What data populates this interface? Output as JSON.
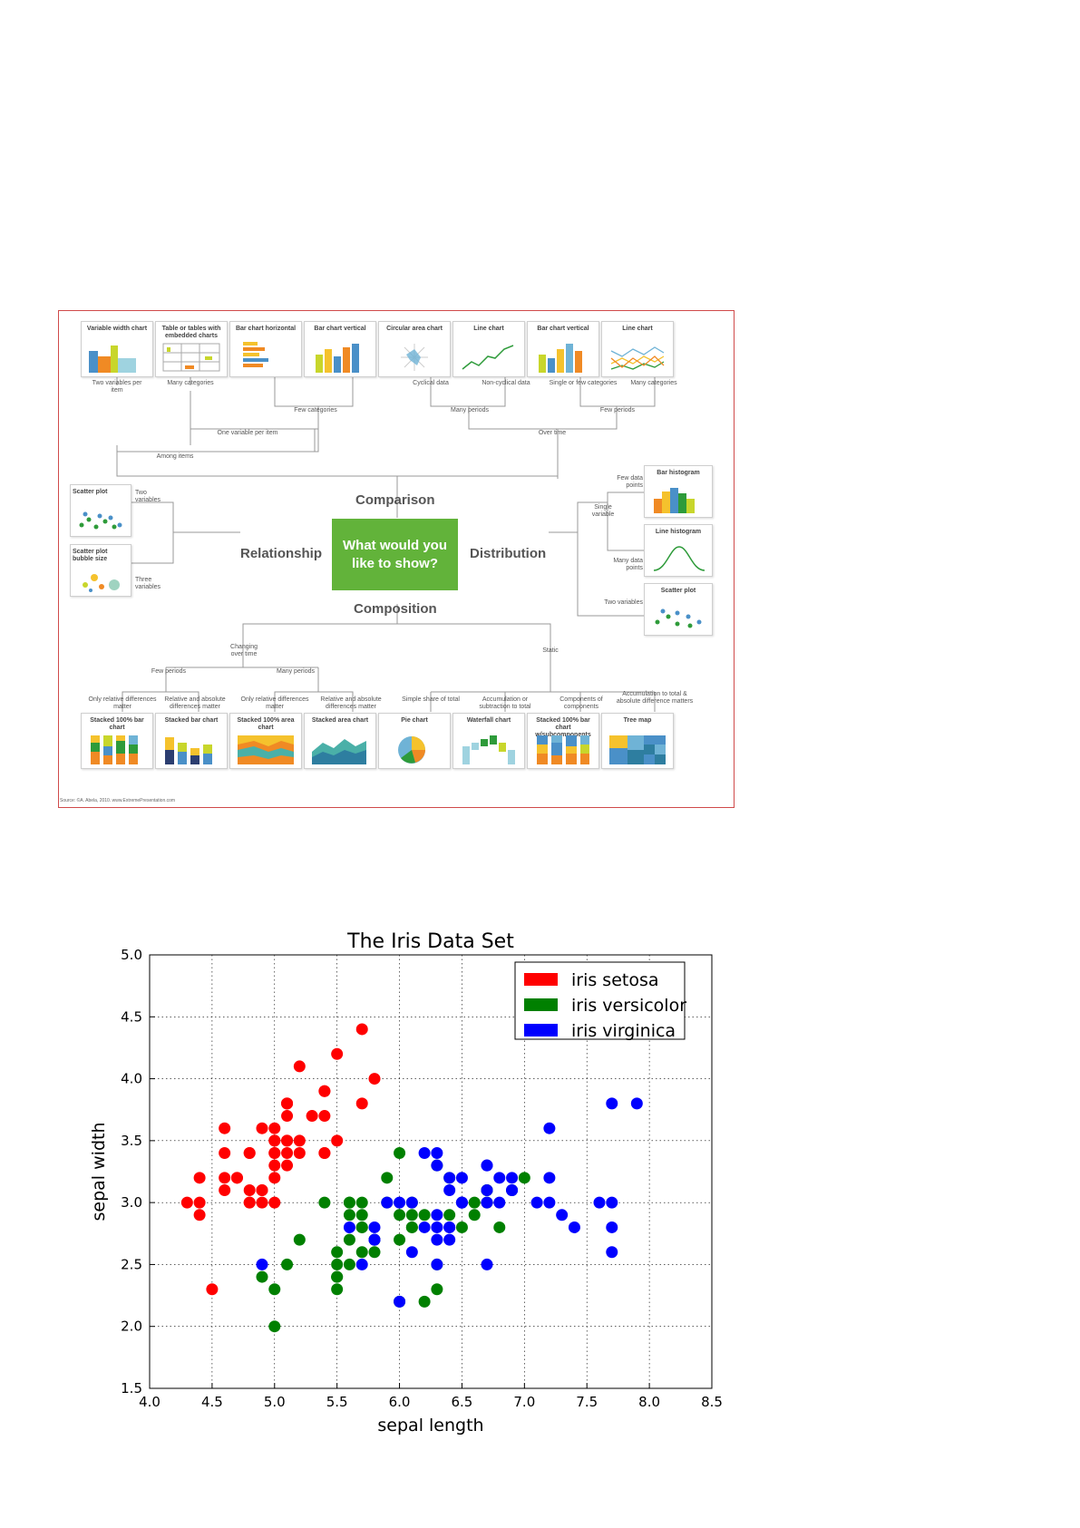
{
  "chooser": {
    "center_text": [
      "What would you",
      "like to show?"
    ],
    "categories": {
      "comparison": "Comparison",
      "relationship": "Relationship",
      "distribution": "Distribution",
      "composition": "Composition"
    },
    "top_cards": [
      {
        "title": "Variable width chart",
        "icon": "variable-width-chart-icon"
      },
      {
        "title": "Table or tables with embedded charts",
        "icon": "table-chart-icon"
      },
      {
        "title": "Bar chart horizontal",
        "icon": "horizontal-bar-chart-icon"
      },
      {
        "title": "Bar chart vertical",
        "icon": "vertical-bar-chart-icon"
      },
      {
        "title": "Circular area chart",
        "icon": "circular-area-chart-icon"
      },
      {
        "title": "Line chart",
        "icon": "line-chart-icon"
      },
      {
        "title": "Bar chart vertical",
        "icon": "vertical-bar-chart-icon"
      },
      {
        "title": "Line chart",
        "icon": "multi-line-chart-icon"
      }
    ],
    "top_labels": {
      "two_vars_per_item": "Two variables per item",
      "many_categories_1": "Many categories",
      "cyclical": "Cyclical data",
      "non_cyclical": "Non-cyclical data",
      "single_few_categories": "Single or few categories",
      "many_categories_2": "Many categories",
      "few_categories": "Few categories",
      "many_periods": "Many periods",
      "few_periods": "Few periods",
      "one_var_per_item": "One variable per item",
      "over_time": "Over time",
      "among_items": "Among items"
    },
    "left_cards": [
      {
        "title": "Scatter plot",
        "icon": "scatter-plot-icon"
      },
      {
        "title": "Scatter plot bubble size",
        "icon": "bubble-chart-icon"
      }
    ],
    "left_labels": {
      "two_vars": "Two variables",
      "three_vars": "Three variables"
    },
    "right_cards": [
      {
        "title": "Bar histogram",
        "icon": "bar-histogram-icon"
      },
      {
        "title": "Line histogram",
        "icon": "line-histogram-icon"
      },
      {
        "title": "Scatter plot",
        "icon": "scatter-plot-icon"
      }
    ],
    "right_labels": {
      "few_points": "Few data points",
      "single_var": "Single variable",
      "many_points": "Many data points",
      "two_vars": "Two variables"
    },
    "bottom_cards": [
      {
        "title": "Stacked 100% bar chart",
        "icon": "stacked-100-bar-chart-icon"
      },
      {
        "title": "Stacked bar chart",
        "icon": "stacked-bar-chart-icon"
      },
      {
        "title": "Stacked 100% area chart",
        "icon": "stacked-100-area-chart-icon"
      },
      {
        "title": "Stacked area chart",
        "icon": "stacked-area-chart-icon"
      },
      {
        "title": "Pie chart",
        "icon": "pie-chart-icon"
      },
      {
        "title": "Waterfall chart",
        "icon": "waterfall-chart-icon"
      },
      {
        "title": "Stacked 100% bar chart w/subcomponents",
        "icon": "stacked-bar-subcomponents-icon"
      },
      {
        "title": "Tree map",
        "icon": "tree-map-icon"
      }
    ],
    "bottom_labels": {
      "only_relative_1": "Only relative differences matter",
      "relative_absolute": "Relative and absolute differences matter",
      "only_relative_2": "Only relative differences matter",
      "relative_absolute_2": "Relative and absolute differences matter",
      "simple_share": "Simple share of total",
      "accumulation": "Accumulation or subtraction to total",
      "components": "Components of components",
      "accumulation_total": "Accumulation to total & absolute difference matters",
      "few_periods": "Few periods",
      "many_periods": "Many periods",
      "changing_over_time": "Changing over time",
      "static": "Static"
    },
    "source": "Source: ©A. Abela, 2010. www.ExtremePresentation.com"
  },
  "chart_data": {
    "type": "scatter",
    "title": "The Iris Data Set",
    "xlabel": "sepal length",
    "ylabel": "sepal width",
    "xlim": [
      4.0,
      8.5
    ],
    "ylim": [
      1.5,
      5.0
    ],
    "xticks": [
      "4.0",
      "4.5",
      "5.0",
      "5.5",
      "6.0",
      "6.5",
      "7.0",
      "7.5",
      "8.0",
      "8.5"
    ],
    "yticks": [
      "1.5",
      "2.0",
      "2.5",
      "3.0",
      "3.5",
      "4.0",
      "4.5",
      "5.0"
    ],
    "grid": true,
    "legend_position": "top-right",
    "series": [
      {
        "name": "iris setosa",
        "color": "#ff0000",
        "points": [
          [
            5.1,
            3.5
          ],
          [
            4.9,
            3.0
          ],
          [
            4.7,
            3.2
          ],
          [
            4.6,
            3.1
          ],
          [
            5.0,
            3.6
          ],
          [
            5.4,
            3.9
          ],
          [
            4.6,
            3.4
          ],
          [
            5.0,
            3.4
          ],
          [
            4.4,
            2.9
          ],
          [
            4.9,
            3.1
          ],
          [
            5.4,
            3.7
          ],
          [
            4.8,
            3.4
          ],
          [
            4.8,
            3.0
          ],
          [
            4.3,
            3.0
          ],
          [
            5.8,
            4.0
          ],
          [
            5.7,
            4.4
          ],
          [
            5.4,
            3.9
          ],
          [
            5.1,
            3.5
          ],
          [
            5.7,
            3.8
          ],
          [
            5.1,
            3.8
          ],
          [
            5.4,
            3.4
          ],
          [
            5.1,
            3.7
          ],
          [
            4.6,
            3.6
          ],
          [
            5.1,
            3.3
          ],
          [
            4.8,
            3.4
          ],
          [
            5.0,
            3.0
          ],
          [
            5.0,
            3.4
          ],
          [
            5.2,
            3.5
          ],
          [
            5.2,
            3.4
          ],
          [
            4.7,
            3.2
          ],
          [
            4.8,
            3.1
          ],
          [
            5.4,
            3.4
          ],
          [
            5.2,
            4.1
          ],
          [
            5.5,
            4.2
          ],
          [
            4.9,
            3.1
          ],
          [
            5.0,
            3.2
          ],
          [
            5.5,
            3.5
          ],
          [
            4.9,
            3.6
          ],
          [
            4.4,
            3.0
          ],
          [
            5.1,
            3.4
          ],
          [
            5.0,
            3.5
          ],
          [
            4.5,
            2.3
          ],
          [
            4.4,
            3.2
          ],
          [
            5.0,
            3.5
          ],
          [
            5.1,
            3.8
          ],
          [
            4.8,
            3.0
          ],
          [
            5.1,
            3.8
          ],
          [
            4.6,
            3.2
          ],
          [
            5.3,
            3.7
          ],
          [
            5.0,
            3.3
          ]
        ]
      },
      {
        "name": "iris versicolor",
        "color": "#008000",
        "points": [
          [
            7.0,
            3.2
          ],
          [
            6.4,
            3.2
          ],
          [
            6.9,
            3.1
          ],
          [
            5.5,
            2.3
          ],
          [
            6.5,
            2.8
          ],
          [
            5.7,
            2.8
          ],
          [
            6.3,
            3.3
          ],
          [
            4.9,
            2.4
          ],
          [
            6.6,
            2.9
          ],
          [
            5.2,
            2.7
          ],
          [
            5.0,
            2.0
          ],
          [
            5.9,
            3.0
          ],
          [
            6.0,
            2.2
          ],
          [
            6.1,
            2.9
          ],
          [
            5.6,
            2.9
          ],
          [
            6.7,
            3.1
          ],
          [
            5.6,
            3.0
          ],
          [
            5.8,
            2.7
          ],
          [
            6.2,
            2.2
          ],
          [
            5.6,
            2.5
          ],
          [
            5.9,
            3.2
          ],
          [
            6.1,
            2.8
          ],
          [
            6.3,
            2.5
          ],
          [
            6.1,
            2.8
          ],
          [
            6.4,
            2.9
          ],
          [
            6.6,
            3.0
          ],
          [
            6.8,
            2.8
          ],
          [
            6.7,
            3.0
          ],
          [
            6.0,
            2.9
          ],
          [
            5.7,
            2.6
          ],
          [
            5.5,
            2.4
          ],
          [
            5.5,
            2.4
          ],
          [
            5.8,
            2.7
          ],
          [
            6.0,
            2.7
          ],
          [
            5.4,
            3.0
          ],
          [
            6.0,
            3.4
          ],
          [
            6.7,
            3.1
          ],
          [
            6.3,
            2.3
          ],
          [
            5.6,
            3.0
          ],
          [
            5.5,
            2.5
          ],
          [
            5.5,
            2.6
          ],
          [
            6.1,
            3.0
          ],
          [
            5.8,
            2.6
          ],
          [
            5.0,
            2.3
          ],
          [
            5.6,
            2.7
          ],
          [
            5.7,
            3.0
          ],
          [
            5.7,
            2.9
          ],
          [
            6.2,
            2.9
          ],
          [
            5.1,
            2.5
          ],
          [
            5.7,
            2.8
          ]
        ]
      },
      {
        "name": "iris virginica",
        "color": "#0000ff",
        "points": [
          [
            6.3,
            3.3
          ],
          [
            5.8,
            2.7
          ],
          [
            7.1,
            3.0
          ],
          [
            6.3,
            2.9
          ],
          [
            6.5,
            3.0
          ],
          [
            7.6,
            3.0
          ],
          [
            4.9,
            2.5
          ],
          [
            7.3,
            2.9
          ],
          [
            6.7,
            2.5
          ],
          [
            7.2,
            3.6
          ],
          [
            6.5,
            3.2
          ],
          [
            6.4,
            2.7
          ],
          [
            6.8,
            3.0
          ],
          [
            5.7,
            2.5
          ],
          [
            5.8,
            2.8
          ],
          [
            6.4,
            3.2
          ],
          [
            6.5,
            3.0
          ],
          [
            7.7,
            3.8
          ],
          [
            7.7,
            2.6
          ],
          [
            6.0,
            2.2
          ],
          [
            6.9,
            3.2
          ],
          [
            5.6,
            2.8
          ],
          [
            7.7,
            2.8
          ],
          [
            6.3,
            2.7
          ],
          [
            6.7,
            3.3
          ],
          [
            7.2,
            3.2
          ],
          [
            6.2,
            2.8
          ],
          [
            6.1,
            3.0
          ],
          [
            6.4,
            2.8
          ],
          [
            7.2,
            3.0
          ],
          [
            7.4,
            2.8
          ],
          [
            7.9,
            3.8
          ],
          [
            6.4,
            2.8
          ],
          [
            6.3,
            2.8
          ],
          [
            6.1,
            2.6
          ],
          [
            7.7,
            3.0
          ],
          [
            6.3,
            3.4
          ],
          [
            6.4,
            3.1
          ],
          [
            6.0,
            3.0
          ],
          [
            6.9,
            3.1
          ],
          [
            6.7,
            3.1
          ],
          [
            6.9,
            3.1
          ],
          [
            5.8,
            2.7
          ],
          [
            6.8,
            3.2
          ],
          [
            6.7,
            3.3
          ],
          [
            6.7,
            3.0
          ],
          [
            6.3,
            2.5
          ],
          [
            6.5,
            3.0
          ],
          [
            6.2,
            3.4
          ],
          [
            5.9,
            3.0
          ]
        ]
      }
    ]
  }
}
